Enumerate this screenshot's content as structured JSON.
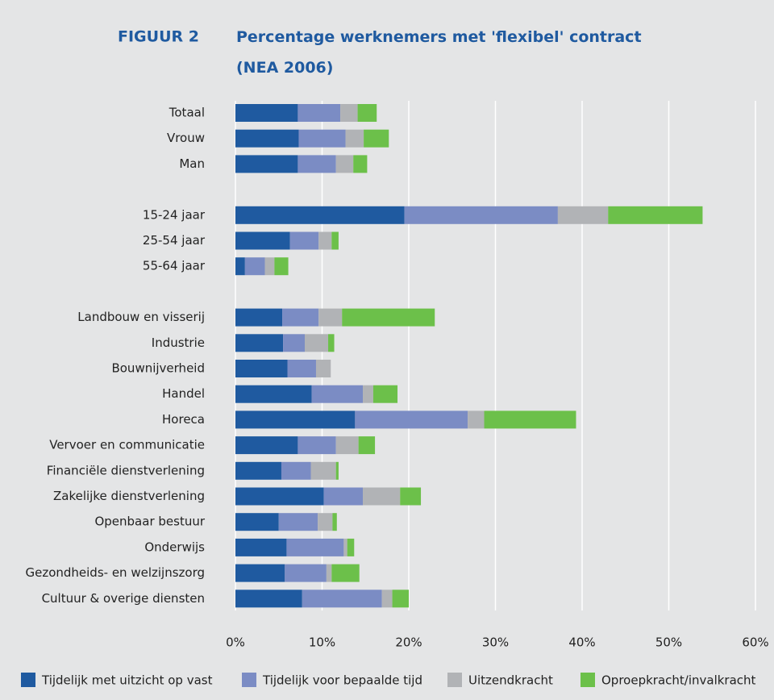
{
  "chart_data": {
    "type": "stacked_bar_horizontal",
    "figure_label": "FIGUUR 2",
    "title": "Percentage werknemers met 'flexibel' contract (NEA 2006)",
    "categories": [
      "Totaal",
      "Vrouw",
      "Man",
      null,
      "15-24 jaar",
      "25-54 jaar",
      "55-64 jaar",
      null,
      "Landbouw en visserij",
      "Industrie",
      "Bouwnijverheid",
      "Handel",
      "Horeca",
      "Vervoer en communicatie",
      "Financiële dienstverlening",
      "Zakelijke dienstverlening",
      "Openbaar bestuur",
      "Onderwijs",
      "Gezondheids- en welzijnszorg",
      "Cultuur & overige diensten"
    ],
    "series": [
      {
        "name": "Tijdelijk met uitzicht op vast",
        "color": "#1f5aa0",
        "values": [
          7.2,
          7.3,
          7.2,
          null,
          19.5,
          6.3,
          1.1,
          null,
          5.4,
          5.5,
          6.0,
          8.8,
          13.8,
          7.2,
          5.3,
          10.2,
          5.0,
          5.9,
          5.7,
          7.7
        ]
      },
      {
        "name": "Tijdelijk voor bepaalde tijd",
        "color": "#7b8cc4",
        "values": [
          4.9,
          5.4,
          4.4,
          null,
          17.7,
          3.3,
          2.3,
          null,
          4.2,
          2.5,
          3.3,
          5.9,
          13.0,
          4.4,
          3.4,
          4.5,
          4.5,
          6.6,
          4.8,
          9.2
        ]
      },
      {
        "name": "Uitzendkracht",
        "color": "#b1b3b6",
        "values": [
          2.0,
          2.1,
          2.0,
          null,
          5.8,
          1.5,
          1.1,
          null,
          2.7,
          2.7,
          1.7,
          1.2,
          1.9,
          2.6,
          2.9,
          4.3,
          1.7,
          0.4,
          0.6,
          1.2
        ]
      },
      {
        "name": "Oproepkracht/invalkracht",
        "color": "#6cc04a",
        "values": [
          2.2,
          2.9,
          1.6,
          null,
          10.9,
          0.8,
          1.6,
          null,
          10.7,
          0.7,
          0,
          2.8,
          10.6,
          1.9,
          0.3,
          2.4,
          0.5,
          0.8,
          3.2,
          1.9
        ]
      }
    ],
    "xlim": [
      0,
      60
    ],
    "xticks": [
      {
        "value": 0,
        "label": "0%"
      },
      {
        "value": 10,
        "label": "10%"
      },
      {
        "value": 20,
        "label": "20%"
      },
      {
        "value": 30,
        "label": "30%"
      },
      {
        "value": 40,
        "label": "40%"
      },
      {
        "value": 50,
        "label": "50%"
      },
      {
        "value": 60,
        "label": "60%"
      }
    ],
    "grid": true
  }
}
